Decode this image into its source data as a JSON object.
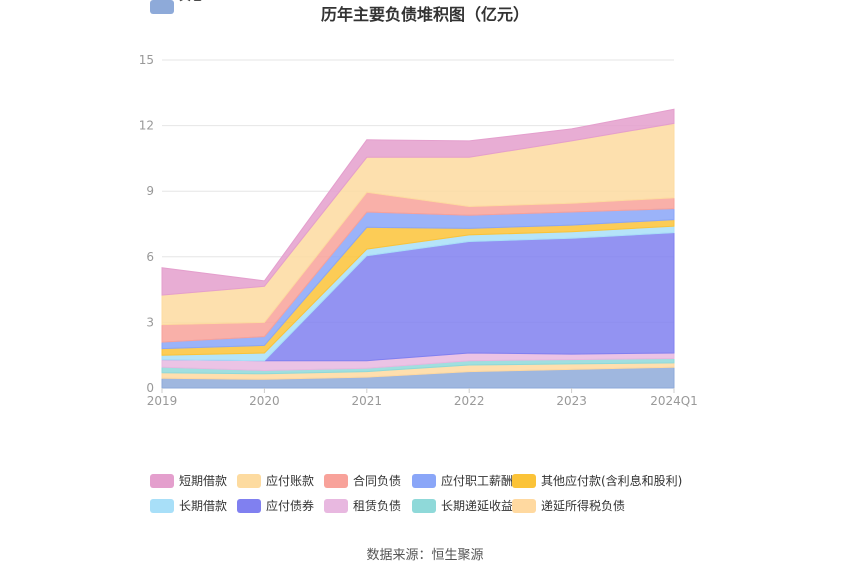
{
  "chart_data": {
    "type": "area",
    "stacked": true,
    "title": "历年主要负债堆积图（亿元）",
    "source": "数据来源：恒生聚源",
    "x": [
      "2019",
      "2020",
      "2021",
      "2022",
      "2023",
      "2024Q1"
    ],
    "ylim": [
      0,
      15
    ],
    "yticks": [
      0,
      3,
      6,
      9,
      12,
      15
    ],
    "grid": true,
    "legend_position": "bottom",
    "series": [
      {
        "name": "其它",
        "color": "#8eaad9",
        "values": [
          0.45,
          0.4,
          0.5,
          0.75,
          0.85,
          0.95
        ]
      },
      {
        "name": "递延所得税负债",
        "color": "#ffd9a0",
        "values": [
          0.25,
          0.25,
          0.25,
          0.3,
          0.25,
          0.2
        ]
      },
      {
        "name": "长期递延收益",
        "color": "#8fd9d9",
        "values": [
          0.25,
          0.15,
          0.15,
          0.2,
          0.2,
          0.2
        ]
      },
      {
        "name": "租赁负债",
        "color": "#e8b8e0",
        "values": [
          0.35,
          0.45,
          0.35,
          0.35,
          0.25,
          0.25
        ]
      },
      {
        "name": "应付债券",
        "color": "#8080f0",
        "values": [
          0.0,
          0.0,
          4.8,
          5.1,
          5.3,
          5.5
        ]
      },
      {
        "name": "长期借款",
        "color": "#a8dff8",
        "values": [
          0.2,
          0.35,
          0.3,
          0.3,
          0.3,
          0.3
        ]
      },
      {
        "name": "其他应付款(含利息和股利)",
        "color": "#fbc338",
        "values": [
          0.3,
          0.35,
          1.0,
          0.3,
          0.3,
          0.3
        ]
      },
      {
        "name": "应付职工薪酬",
        "color": "#8aa6f8",
        "values": [
          0.3,
          0.4,
          0.7,
          0.6,
          0.6,
          0.5
        ]
      },
      {
        "name": "合同负债",
        "color": "#f8a29a",
        "values": [
          0.8,
          0.65,
          0.9,
          0.4,
          0.4,
          0.5
        ]
      },
      {
        "name": "应付账款",
        "color": "#fddba0",
        "values": [
          1.35,
          1.65,
          1.6,
          2.25,
          2.85,
          3.4
        ]
      },
      {
        "name": "短期借款",
        "color": "#e49fcd",
        "values": [
          1.25,
          0.25,
          0.8,
          0.75,
          0.55,
          0.65
        ]
      }
    ],
    "legend_order": [
      "短期借款",
      "应付账款",
      "合同负债",
      "应付职工薪酬",
      "其他应付款(含利息和股利)",
      "长期借款",
      "应付债券",
      "租赁负债",
      "长期递延收益",
      "递延所得税负债",
      "其它"
    ]
  }
}
